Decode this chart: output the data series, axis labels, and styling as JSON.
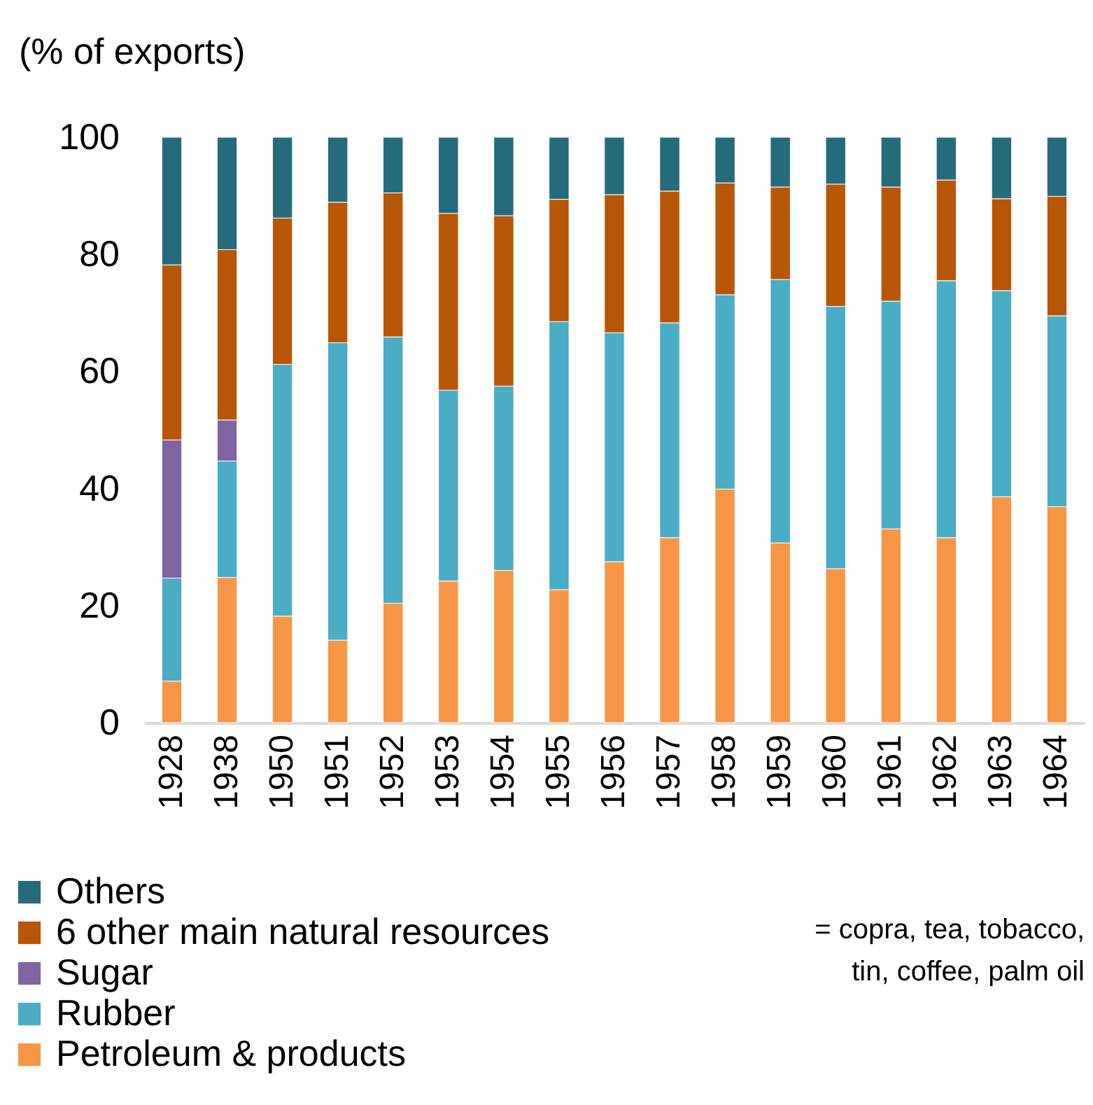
{
  "chart_data": {
    "type": "bar",
    "stacked": true,
    "ylabel": "(% of exports)",
    "categories": [
      "1928",
      "1938",
      "1950",
      "1951",
      "1952",
      "1953",
      "1954",
      "1955",
      "1956",
      "1957",
      "1958",
      "1959",
      "1960",
      "1961",
      "1962",
      "1963",
      "1964"
    ],
    "series": [
      {
        "name": "Petroleum & products",
        "color": "#f79646",
        "values": [
          7.1,
          24.8,
          18.2,
          14.1,
          20.4,
          24.2,
          26,
          22.7,
          27.5,
          31.6,
          39.9,
          30.7,
          26.3,
          33.1,
          31.6,
          38.6,
          36.9
        ]
      },
      {
        "name": "Rubber",
        "color": "#4bacc6",
        "values": [
          17.6,
          19.9,
          43,
          50.8,
          45.5,
          32.6,
          31.5,
          45.8,
          39.1,
          36.7,
          33.2,
          45,
          44.8,
          38.9,
          43.9,
          35.2,
          32.6
        ]
      },
      {
        "name": "Sugar",
        "color": "#8064a2",
        "values": [
          23.6,
          7,
          null,
          null,
          null,
          null,
          null,
          null,
          null,
          null,
          null,
          null,
          null,
          null,
          null,
          null,
          null
        ]
      },
      {
        "name": "6 other main natural resources",
        "color": "#b85607",
        "values": [
          29.9,
          29.1,
          25,
          24,
          24.6,
          30.2,
          29.1,
          20.9,
          23.6,
          22.5,
          19.1,
          15.8,
          20.9,
          19.5,
          17.2,
          15.7,
          20.4
        ]
      },
      {
        "name": "Others",
        "color": "#266b7c",
        "values": [
          21.8,
          19.2,
          13.8,
          11.1,
          9.5,
          13,
          13.4,
          10.6,
          9.8,
          9.2,
          7.8,
          8.5,
          8,
          8.5,
          7.3,
          10.5,
          10.1
        ]
      }
    ],
    "ylim": [
      0,
      100
    ],
    "yticks": [
      0,
      20,
      40,
      60,
      80,
      100
    ],
    "grid": false,
    "legend": "bottom",
    "annotations": [
      "= copra, tea, tobacco, tin, coffee, palm oil"
    ]
  }
}
